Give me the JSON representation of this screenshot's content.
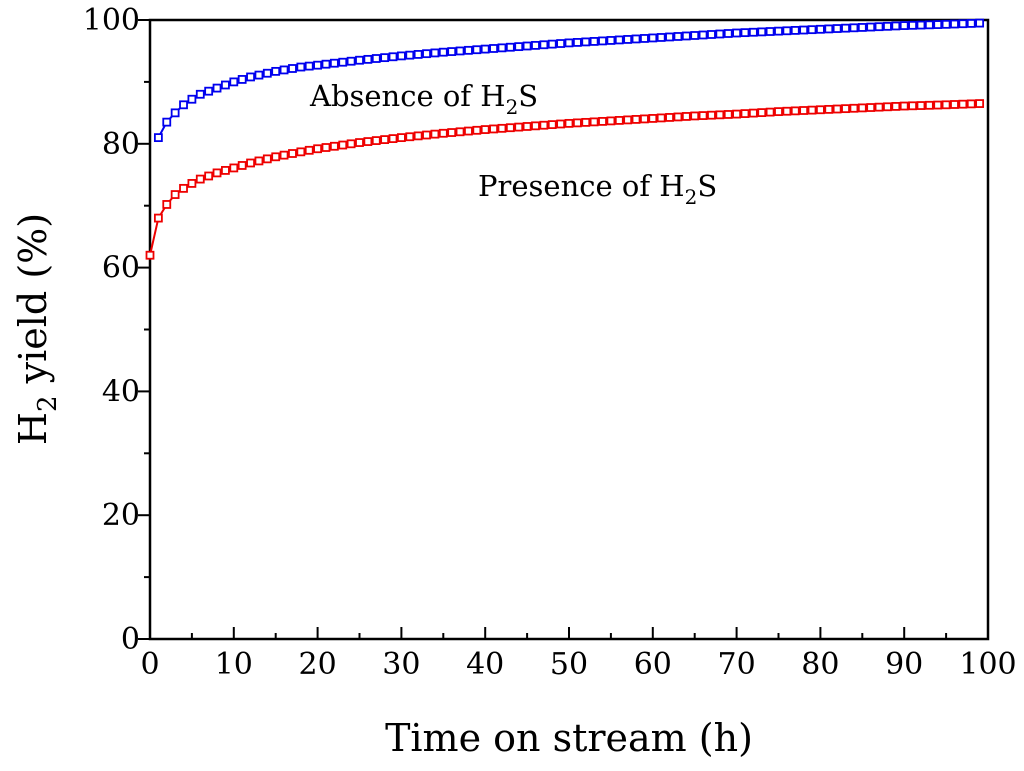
{
  "chart_data": {
    "type": "line",
    "xlabel": "Time on stream (h)",
    "ylabel": {
      "pre": "H",
      "sub": "2",
      "post": " yield (%)"
    },
    "xlim": [
      0,
      100
    ],
    "ylim": [
      0,
      100
    ],
    "x_ticks": [
      0,
      10,
      20,
      30,
      40,
      50,
      60,
      70,
      80,
      90,
      100
    ],
    "x_tick_labels": [
      "0",
      "10",
      "20",
      "30",
      "40",
      "50",
      "60",
      "70",
      "80",
      "90",
      "100"
    ],
    "y_ticks": [
      0,
      20,
      40,
      60,
      80,
      100
    ],
    "y_tick_labels": [
      "0",
      "20",
      "40",
      "60",
      "80",
      "100"
    ],
    "grid": false,
    "legend": "none",
    "marker": "open-square",
    "series": [
      {
        "color": "#0000ee",
        "x_start": 1,
        "x_step": 1,
        "x_end": 99,
        "points": [
          [
            1,
            81
          ],
          [
            2,
            83.5
          ],
          [
            3,
            85
          ],
          [
            4,
            86.3
          ],
          [
            5,
            87.2
          ],
          [
            6,
            88
          ],
          [
            8,
            89
          ],
          [
            10,
            90
          ],
          [
            12,
            90.8
          ],
          [
            15,
            91.7
          ],
          [
            18,
            92.4
          ],
          [
            20,
            92.7
          ],
          [
            25,
            93.5
          ],
          [
            30,
            94.2
          ],
          [
            35,
            94.8
          ],
          [
            40,
            95.3
          ],
          [
            45,
            95.8
          ],
          [
            50,
            96.3
          ],
          [
            55,
            96.7
          ],
          [
            60,
            97.1
          ],
          [
            65,
            97.5
          ],
          [
            70,
            97.9
          ],
          [
            75,
            98.2
          ],
          [
            80,
            98.5
          ],
          [
            85,
            98.8
          ],
          [
            90,
            99.1
          ],
          [
            95,
            99.3
          ],
          [
            99,
            99.5
          ]
        ]
      },
      {
        "color": "#ee0000",
        "x_start": 0,
        "x_step": 1,
        "x_end": 99,
        "points": [
          [
            0,
            62
          ],
          [
            1,
            68
          ],
          [
            2,
            70.2
          ],
          [
            3,
            71.8
          ],
          [
            4,
            72.8
          ],
          [
            5,
            73.6
          ],
          [
            6,
            74.3
          ],
          [
            8,
            75.3
          ],
          [
            10,
            76.1
          ],
          [
            12,
            76.9
          ],
          [
            15,
            77.9
          ],
          [
            18,
            78.7
          ],
          [
            20,
            79.2
          ],
          [
            25,
            80.2
          ],
          [
            30,
            81
          ],
          [
            35,
            81.7
          ],
          [
            40,
            82.3
          ],
          [
            45,
            82.8
          ],
          [
            50,
            83.3
          ],
          [
            55,
            83.7
          ],
          [
            60,
            84.1
          ],
          [
            65,
            84.5
          ],
          [
            70,
            84.8
          ],
          [
            75,
            85.2
          ],
          [
            80,
            85.5
          ],
          [
            85,
            85.8
          ],
          [
            90,
            86.1
          ],
          [
            95,
            86.3
          ],
          [
            99,
            86.5
          ]
        ]
      }
    ],
    "annotations": [
      {
        "pre": "Absence of H",
        "sub": "2",
        "post": "S",
        "color": "#000000"
      },
      {
        "pre": "Presence of H",
        "sub": "2",
        "post": "S",
        "color": "#000000"
      }
    ]
  }
}
